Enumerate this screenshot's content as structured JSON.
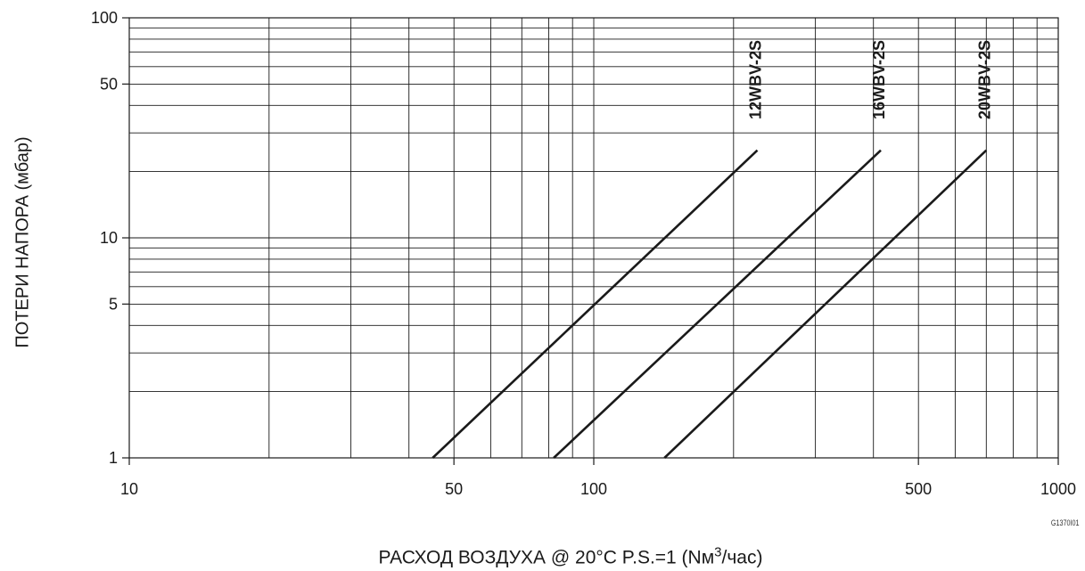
{
  "chart_data": {
    "type": "line",
    "title": "",
    "xlabel": {
      "before": "РАСХОД ВОЗДУХА @ 20°C P.S.=1 (Nм",
      "sup": "3",
      "after": "/час)"
    },
    "ylabel": "ПОТЕРИ НАПОРА (мбар)",
    "x_scale": "log",
    "y_scale": "log",
    "xlim": [
      10,
      1000
    ],
    "ylim": [
      1,
      100
    ],
    "x_ticks": [
      10,
      50,
      100,
      500,
      1000
    ],
    "x_tick_labels": [
      "10",
      "50",
      "100",
      "500",
      "1000"
    ],
    "y_ticks": [
      1,
      5,
      10,
      50,
      100
    ],
    "y_tick_labels": [
      "1",
      "5",
      "10",
      "50",
      "100"
    ],
    "grid": true,
    "series": [
      {
        "name": "12WBV-2S",
        "x": [
          45,
          225
        ],
        "y": [
          1,
          25
        ]
      },
      {
        "name": "16WBV-2S",
        "x": [
          82,
          415
        ],
        "y": [
          1,
          25
        ]
      },
      {
        "name": "20WBV-2S",
        "x": [
          142,
          700
        ],
        "y": [
          1,
          25
        ]
      }
    ]
  },
  "figure_code": "G1370I01",
  "colors": {
    "line": "#1a1a1a",
    "grid": "#1a1a1a",
    "background": "#ffffff"
  }
}
